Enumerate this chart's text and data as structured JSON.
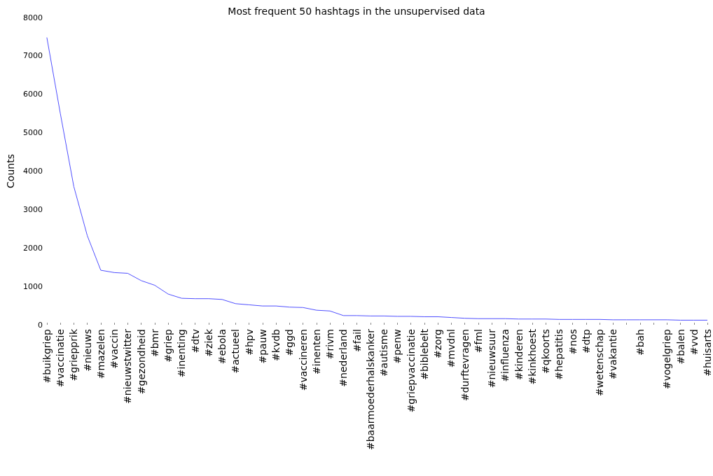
{
  "chart_data": {
    "type": "line",
    "title": "Most frequent 50 hashtags in the unsupervised data",
    "ylabel": "Counts",
    "categories": [
      "#buikgriep",
      "#vaccinatie",
      "#griepprik",
      "#nieuws",
      "#mazelen",
      "#vaccin",
      "#nieuwstwitter",
      "#gezondheid",
      "#bmr",
      "#griep",
      "#inenting",
      "#dtv",
      "#ziek",
      "#ebola",
      "#actueel",
      "#hpv",
      "#pauw",
      "#kvdb",
      "#ggd",
      "#vaccineren",
      "#inenten",
      "#rivm",
      "#nederland",
      "#fail",
      "#baarmoederhalskanker",
      "#autisme",
      "#penw",
      "#griepvaccinatie",
      "#biblebelt",
      "#zorg",
      "#mvdnl",
      "#durftevragen",
      "#fml",
      "#nieuwsuur",
      "#influenza",
      "#kinderen",
      "#kinkhoest",
      "#qkoorts",
      "#hepatitis",
      "#nos",
      "#dtp",
      "#wetenschap",
      "#vakantie",
      null,
      "#bah",
      null,
      "#vogelgriep",
      "#balen",
      "#vvd",
      "#huisarts"
    ],
    "series": [
      {
        "color": "#4f4fff",
        "values": [
          7480,
          5500,
          3600,
          2320,
          1420,
          1360,
          1340,
          1150,
          1030,
          800,
          690,
          680,
          680,
          660,
          550,
          520,
          490,
          490,
          460,
          450,
          380,
          360,
          240,
          240,
          230,
          230,
          220,
          220,
          210,
          210,
          190,
          170,
          160,
          160,
          160,
          150,
          150,
          150,
          140,
          140,
          140,
          140,
          130,
          130,
          130,
          130,
          130,
          120,
          120,
          120
        ]
      }
    ],
    "ylim": [
      0,
      8000
    ],
    "yticks": [
      0,
      1000,
      2000,
      3000,
      4000,
      5000,
      6000,
      7000,
      8000
    ],
    "grid": false,
    "marker": "none",
    "line_style": "solid"
  }
}
